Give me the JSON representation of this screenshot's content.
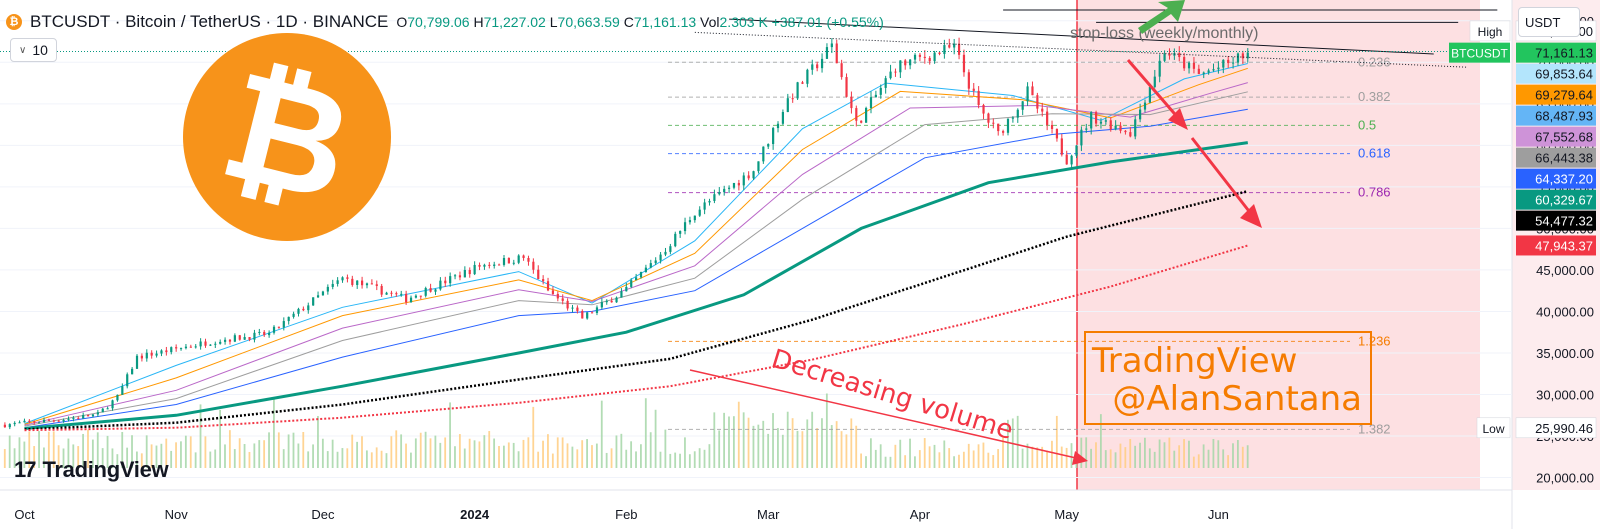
{
  "header": {
    "symbol": "BTCUSDT · Bitcoin / TetherUS · 1D · BINANCE",
    "coin_glyph": "₿",
    "ohlc_open_label": "O",
    "ohlc_open": "70,799.06",
    "ohlc_high_label": "H",
    "ohlc_high": "71,227.02",
    "ohlc_low_label": "L",
    "ohlc_low": "70,663.59",
    "ohlc_close_label": "C",
    "ohlc_close": "71,161.13",
    "volume_label": "Vol",
    "volume": "2.303 K",
    "change": "+387.01 (+0.55%)",
    "indicator_count": "10",
    "chevron": "∨",
    "currency": "USDT"
  },
  "colors": {
    "up": "#089981",
    "down": "#f23645",
    "bitcoin": "#f7931a",
    "watermark": "#f57c00",
    "zone": "#fde0e2",
    "annotation": "#f23645"
  },
  "chart_data": {
    "type": "candlestick",
    "symbol": "BTCUSDT",
    "timeframe": "1D",
    "x_ticks": [
      "Oct",
      "Nov",
      "Dec",
      "2024",
      "Feb",
      "Mar",
      "Apr",
      "May",
      "Jun"
    ],
    "y_ticks": [
      20000,
      25000,
      30000,
      35000,
      40000,
      45000,
      50000,
      55000,
      60000,
      65000,
      70000,
      75000
    ],
    "y_tick_labels": [
      "20,000.00",
      "25,000.00",
      "30,000.00",
      "35,000.00",
      "40,000.00",
      "45,000.00",
      "50,000.00",
      "55,000.00",
      "60,000.00",
      "65,000.00",
      "70,000.00",
      "75,000.00"
    ],
    "ylim": [
      18500,
      77500
    ],
    "x_range": [
      "2023-09-26",
      "2024-07-31"
    ],
    "price_path": [
      [
        "2023-09-26",
        26300
      ],
      [
        "2023-10-10",
        27100
      ],
      [
        "2023-10-16",
        27600
      ],
      [
        "2023-10-20",
        29700
      ],
      [
        "2023-10-24",
        34500
      ],
      [
        "2023-11-09",
        36500
      ],
      [
        "2023-11-20",
        37300
      ],
      [
        "2023-12-05",
        44000
      ],
      [
        "2023-12-18",
        41500
      ],
      [
        "2024-01-02",
        45500
      ],
      [
        "2024-01-11",
        46500
      ],
      [
        "2024-01-16",
        42500
      ],
      [
        "2024-01-23",
        39200
      ],
      [
        "2024-02-01",
        42700
      ],
      [
        "2024-02-09",
        47500
      ],
      [
        "2024-02-15",
        52000
      ],
      [
        "2024-02-27",
        57000
      ],
      [
        "2024-03-05",
        65500
      ],
      [
        "2024-03-14",
        72000
      ],
      [
        "2024-03-19",
        62500
      ],
      [
        "2024-03-27",
        69500
      ],
      [
        "2024-04-08",
        71800
      ],
      [
        "2024-04-13",
        64500
      ],
      [
        "2024-04-17",
        61300
      ],
      [
        "2024-04-23",
        66500
      ],
      [
        "2024-05-01",
        58300
      ],
      [
        "2024-05-06",
        63500
      ],
      [
        "2024-05-14",
        61600
      ],
      [
        "2024-05-21",
        71400
      ],
      [
        "2024-05-28",
        68500
      ],
      [
        "2024-06-03",
        69800
      ],
      [
        "2024-06-07",
        71161.13
      ]
    ],
    "moving_averages": [
      {
        "color": "#29b6f6",
        "points": [
          [
            "2023-10-01",
            26500
          ],
          [
            "2023-11-01",
            33500
          ],
          [
            "2023-12-05",
            40500
          ],
          [
            "2024-01-10",
            44800
          ],
          [
            "2024-01-25",
            41000
          ],
          [
            "2024-02-15",
            48500
          ],
          [
            "2024-03-08",
            62000
          ],
          [
            "2024-03-25",
            67500
          ],
          [
            "2024-04-20",
            66000
          ],
          [
            "2024-05-08",
            63000
          ],
          [
            "2024-05-25",
            68000
          ],
          [
            "2024-06-07",
            69853.64
          ]
        ]
      },
      {
        "color": "#ff9800",
        "points": [
          [
            "2023-10-01",
            26400
          ],
          [
            "2023-11-01",
            32000
          ],
          [
            "2023-12-05",
            39500
          ],
          [
            "2024-01-10",
            43800
          ],
          [
            "2024-01-25",
            41300
          ],
          [
            "2024-02-15",
            47000
          ],
          [
            "2024-03-08",
            59500
          ],
          [
            "2024-03-28",
            66500
          ],
          [
            "2024-04-22",
            65500
          ],
          [
            "2024-05-10",
            63300
          ],
          [
            "2024-05-28",
            67300
          ],
          [
            "2024-06-07",
            69279.64
          ]
        ]
      },
      {
        "color": "#ba68c8",
        "points": [
          [
            "2023-10-01",
            26300
          ],
          [
            "2023-11-01",
            30500
          ],
          [
            "2023-12-05",
            38000
          ],
          [
            "2024-01-10",
            42600
          ],
          [
            "2024-01-25",
            41200
          ],
          [
            "2024-02-15",
            45500
          ],
          [
            "2024-03-08",
            56500
          ],
          [
            "2024-03-30",
            64500
          ],
          [
            "2024-04-25",
            64800
          ],
          [
            "2024-05-14",
            63400
          ],
          [
            "2024-05-30",
            66200
          ],
          [
            "2024-06-07",
            67552.68
          ]
        ]
      },
      {
        "color": "#9e9e9e",
        "points": [
          [
            "2023-10-01",
            26200
          ],
          [
            "2023-11-01",
            29500
          ],
          [
            "2023-12-05",
            36500
          ],
          [
            "2024-01-10",
            41300
          ],
          [
            "2024-01-25",
            40800
          ],
          [
            "2024-02-15",
            44000
          ],
          [
            "2024-03-08",
            53500
          ],
          [
            "2024-04-02",
            62500
          ],
          [
            "2024-04-28",
            63800
          ],
          [
            "2024-05-18",
            63700
          ],
          [
            "2024-06-07",
            66443.38
          ]
        ]
      },
      {
        "color": "#2962ff",
        "points": [
          [
            "2023-10-01",
            26000
          ],
          [
            "2023-11-01",
            28800
          ],
          [
            "2023-12-05",
            34500
          ],
          [
            "2024-01-10",
            39500
          ],
          [
            "2024-01-25",
            40000
          ],
          [
            "2024-02-15",
            42500
          ],
          [
            "2024-03-08",
            50000
          ],
          [
            "2024-04-02",
            58500
          ],
          [
            "2024-04-28",
            61300
          ],
          [
            "2024-05-18",
            62300
          ],
          [
            "2024-06-07",
            64337.2
          ]
        ]
      },
      {
        "color": "#089981",
        "width": 3,
        "points": [
          [
            "2023-10-01",
            25900
          ],
          [
            "2023-11-01",
            27500
          ],
          [
            "2023-12-05",
            31000
          ],
          [
            "2024-01-10",
            35000
          ],
          [
            "2024-02-01",
            37500
          ],
          [
            "2024-02-25",
            42000
          ],
          [
            "2024-03-20",
            50000
          ],
          [
            "2024-04-15",
            55500
          ],
          [
            "2024-05-10",
            58000
          ],
          [
            "2024-06-07",
            60329.67
          ]
        ]
      },
      {
        "color": "#000000",
        "width": 2.5,
        "dash": "2 2",
        "points": [
          [
            "2023-10-01",
            25800
          ],
          [
            "2023-11-01",
            26600
          ],
          [
            "2023-12-05",
            28800
          ],
          [
            "2024-01-10",
            31800
          ],
          [
            "2024-02-10",
            34300
          ],
          [
            "2024-03-10",
            39000
          ],
          [
            "2024-04-05",
            44000
          ],
          [
            "2024-05-01",
            49000
          ],
          [
            "2024-06-07",
            54477.32
          ]
        ]
      },
      {
        "color": "#f23645",
        "width": 2,
        "dash": "2 2",
        "points": [
          [
            "2023-10-01",
            25700
          ],
          [
            "2023-11-01",
            26000
          ],
          [
            "2023-12-05",
            27200
          ],
          [
            "2024-01-10",
            29000
          ],
          [
            "2024-02-10",
            31000
          ],
          [
            "2024-03-10",
            34200
          ],
          [
            "2024-04-10",
            38500
          ],
          [
            "2024-05-10",
            43000
          ],
          [
            "2024-06-07",
            47943.37
          ]
        ]
      }
    ],
    "fib_levels": [
      {
        "label": "0.236",
        "price": 70000,
        "color": "#9e9e9e"
      },
      {
        "label": "0.382",
        "price": 65800,
        "color": "#9e9e9e"
      },
      {
        "label": "0.5",
        "price": 62400,
        "color": "#4caf50"
      },
      {
        "label": "0.618",
        "price": 59000,
        "color": "#2962ff"
      },
      {
        "label": "0.786",
        "price": 54300,
        "color": "#9c27b0"
      },
      {
        "label": "1.236",
        "price": 36400,
        "color": "#f57c00"
      },
      {
        "label": "1.382",
        "price": 25800,
        "color": "#9e9e9e"
      }
    ],
    "price_labels": [
      {
        "text": "73,777.00",
        "price": 73777,
        "bg": "#ffffff",
        "fg": "#131722",
        "tag": "High"
      },
      {
        "text": "71,161.13",
        "price": 71161.13,
        "bg": "#22c55e",
        "fg": "#131722",
        "tag": "BTCUSDT"
      },
      {
        "text": "69,853.64",
        "price": 69853.64,
        "bg": "#b3e5fc",
        "fg": "#131722"
      },
      {
        "text": "69,279.64",
        "price": 69279.64,
        "bg": "#ff9800",
        "fg": "#131722"
      },
      {
        "text": "68,487.93",
        "price": 68487.93,
        "bg": "#64b5f6",
        "fg": "#131722"
      },
      {
        "text": "67,552.68",
        "price": 67552.68,
        "bg": "#ce93d8",
        "fg": "#131722"
      },
      {
        "text": "66,443.38",
        "price": 66443.38,
        "bg": "#9e9e9e",
        "fg": "#131722"
      },
      {
        "text": "64,337.20",
        "price": 64337.2,
        "bg": "#2962ff",
        "fg": "#ffffff"
      },
      {
        "text": "60,329.67",
        "price": 60329.67,
        "bg": "#089981",
        "fg": "#ffffff"
      },
      {
        "text": "54,477.32",
        "price": 54477.32,
        "bg": "#000000",
        "fg": "#ffffff"
      },
      {
        "text": "47,943.37",
        "price": 47943.37,
        "bg": "#f23645",
        "fg": "#ffffff"
      },
      {
        "text": "25,990.46",
        "price": 25990.46,
        "bg": "#ffffff",
        "fg": "#131722",
        "tag": "Low"
      }
    ],
    "annotations": {
      "stop_loss": "stop-loss (weekly/monthly)",
      "volume_note": "Decreasing volume",
      "watermark_line1": "TradingView",
      "watermark_line2": "@AlanSantana",
      "brand": "TradingView",
      "brand_mark": "17"
    }
  }
}
